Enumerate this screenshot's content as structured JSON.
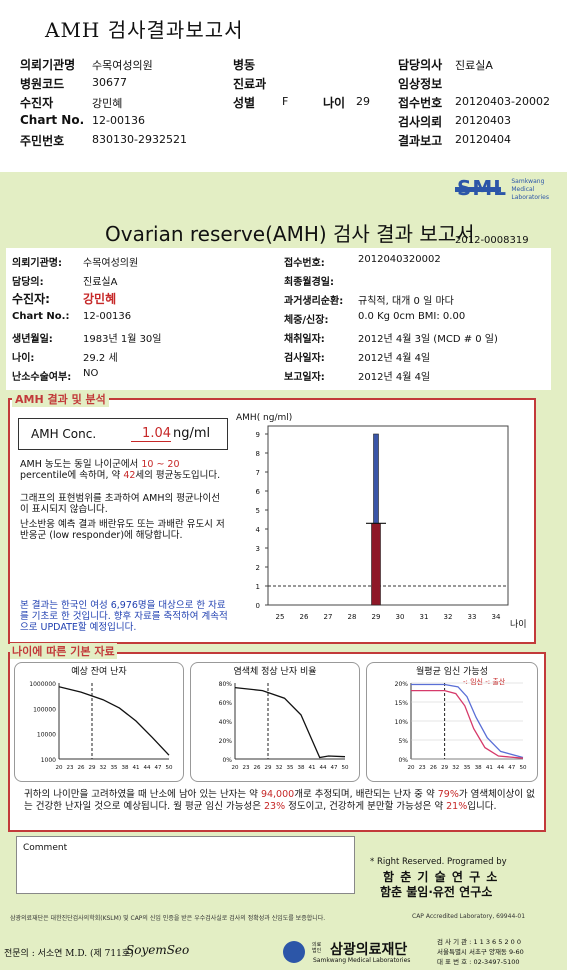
{
  "header": {
    "title": "AMH 검사결과보고서",
    "rows": [
      [
        {
          "label": "의뢰기관명",
          "value": "수목여성의원"
        },
        {
          "label": "병동",
          "value": ""
        },
        {
          "label": "담당의사",
          "value": "진료실A"
        }
      ],
      [
        {
          "label": "병원코드",
          "value": "30677"
        },
        {
          "label": "진료과",
          "value": ""
        },
        {
          "label": "임상정보",
          "value": ""
        }
      ],
      [
        {
          "label": "수진자",
          "value": "강민혜"
        },
        {
          "label": "성별",
          "value": "F"
        },
        {
          "label": "접수번호",
          "value": "20120403-20002"
        }
      ],
      [
        {
          "label": "Chart No.",
          "value": "12-00136"
        },
        {
          "label": "",
          "value": ""
        },
        {
          "label": "검사의뢰",
          "value": "20120403"
        }
      ],
      [
        {
          "label": "주민번호",
          "value": "830130-2932521"
        },
        {
          "label": "",
          "value": ""
        },
        {
          "label": "결과보고",
          "value": "20120404"
        }
      ]
    ],
    "age_label": "나이",
    "age_value": "29"
  },
  "brand": {
    "logo": "SML",
    "sub1": "Samkwang",
    "sub2": "Medical",
    "sub3": "Laboratories"
  },
  "report": {
    "title": "Ovarian reserve(AMH) 검사 결과 보고서",
    "number": "2012-0008319",
    "left": [
      {
        "label": "의뢰기관명:",
        "value": "수목여성의원"
      },
      {
        "label": "담당의:",
        "value": "진료실A"
      },
      {
        "label": "수진자:",
        "value": "강민혜"
      },
      {
        "label": "Chart No.:",
        "value": "12-00136"
      },
      {
        "label": "생년월일:",
        "value": "1983년 1월 30일"
      },
      {
        "label": "나이:",
        "value": "29.2 세"
      },
      {
        "label": "난소수술여부:",
        "value": "NO"
      }
    ],
    "right": [
      {
        "label": "접수번호:",
        "value": "2012040320002"
      },
      {
        "label": "최종월경일:",
        "value": ""
      },
      {
        "label": "과거생리순환:",
        "value": "규칙적, 대개    0 일 마다"
      },
      {
        "label": "체중/신장:",
        "value": "0.0 Kg        0cm   BMI:   0.00"
      },
      {
        "label": "채취일자:",
        "value": "2012년 4월 3일    (MCD # 0 일)"
      },
      {
        "label": "검사일자:",
        "value": "2012년 4월 4일"
      },
      {
        "label": "보고일자:",
        "value": "2012년 4월 4일"
      }
    ]
  },
  "result": {
    "section_title": "AMH 결과 및 분석",
    "conc_label": "AMH Conc.",
    "conc_value": "1.04",
    "conc_unit": "ng/ml",
    "p1": "AMH 농도는 동일 나이군에서",
    "p1_range": "10 ~ 20",
    "p1b": "percentile에 속하며, 약",
    "p1_age": "42",
    "p1c": "세의 평균농도입니다.",
    "p2": "그래프의 표현범위를 초과하여 AMH의 평균나이선이 표시되지 않습니다.",
    "p3": "난소반응 예측 결과 배란유도 또는 과배란 유도시 저반응군 (low responder)에 해당합니다.",
    "note": "본 결과는 한국인 여성 6,976명을 대상으로 한 자료를 기초로 한 것입니다. 향후 자료를 축적하여 계속적으로 UPDATE할 예정입니다."
  },
  "chart_data": [
    {
      "type": "bar",
      "ylabel": "AMH( ng/ml)",
      "xlabel": "나이",
      "x_ticks": [
        25,
        26,
        27,
        28,
        29,
        30,
        31,
        32,
        33,
        34
      ],
      "y_ticks": [
        0,
        1,
        2,
        3,
        4,
        5,
        6,
        7,
        8,
        9
      ],
      "ylim": [
        0,
        9
      ],
      "xlim": [
        24.5,
        34.5
      ],
      "reference_line": 1,
      "bars": [
        {
          "x": 29,
          "from": 4.3,
          "to": 9,
          "color": "#3a55a8"
        },
        {
          "x": 29,
          "from": 0,
          "to": 4.3,
          "color": "#8e1828"
        }
      ],
      "marker_value": 4.3
    },
    {
      "type": "line",
      "title": "예상 잔여 난자",
      "x_ticks": [
        20,
        23,
        26,
        29,
        32,
        35,
        38,
        41,
        44,
        47,
        50
      ],
      "y_ticks": [
        "1000000",
        "100000",
        "10000",
        "1000"
      ],
      "yscale": "log",
      "marker_x": 29
    },
    {
      "type": "line",
      "title": "염색체 정상 난자 비율",
      "x_ticks": [
        20,
        23,
        26,
        29,
        32,
        35,
        38,
        41,
        44,
        47,
        50
      ],
      "y_ticks": [
        "80%",
        "60%",
        "40%",
        "20%",
        "0%"
      ],
      "marker_x": 29
    },
    {
      "type": "line",
      "title": "월평균 임신 가능성",
      "legend": "-: 임신 -: 출산",
      "x_ticks": [
        20,
        23,
        26,
        29,
        32,
        35,
        38,
        41,
        44,
        47,
        50
      ],
      "y_ticks": [
        "20%",
        "15%",
        "10%",
        "5%",
        "0%"
      ],
      "marker_x": 29
    }
  ],
  "age_section": {
    "title": "나이에 따른 기본 자료",
    "t1": "귀하의 나이만을 고려하였을 때 난소에 남아 있는 난자는 약",
    "eggs": "94,000",
    "t2": "개로 추정되며, 배란되는 난자 중",
    "t3": "약",
    "normal": "79%",
    "t4": "가 염색체이상이 없는 건강한 난자일 것으로 예상됩니다. 월 평균 임신 가능성은",
    "preg": "23%",
    "t5": "정도이고,",
    "t6": "건강하게 분만할 가능성은 약",
    "birth": "21%",
    "t7": "입니다."
  },
  "comment_label": "Comment",
  "footer": {
    "rights": "* Right Reserved. Programed by",
    "org1": "함 춘 기 술 연 구 소",
    "org2": "함춘 불임·유전 연구소",
    "cert": "삼광의료재단은 대한진단검사의학회(KSLM) 및 CAP의 신임 인증을 받은 우수검사실로 검사의 정확성과 신임도를 보증합니다.",
    "cap": "CAP  Accredited  Laboratory,  69944-01",
    "doctor": "전문의 : 서소연 M.D. (제 711호)",
    "signature": "SoyemSeo",
    "foundation": "삼광의료재단",
    "foundation_en": "Samkwang Medical Laboratories",
    "foundation_tag": "의료법인",
    "reg": "검 사 기 관 : 1 1 3 6 5 2 0 0",
    "addr": "서울특별시 서초구 양재동 9-60",
    "tel": "대 표 번 호 : 02-3497-5100"
  }
}
